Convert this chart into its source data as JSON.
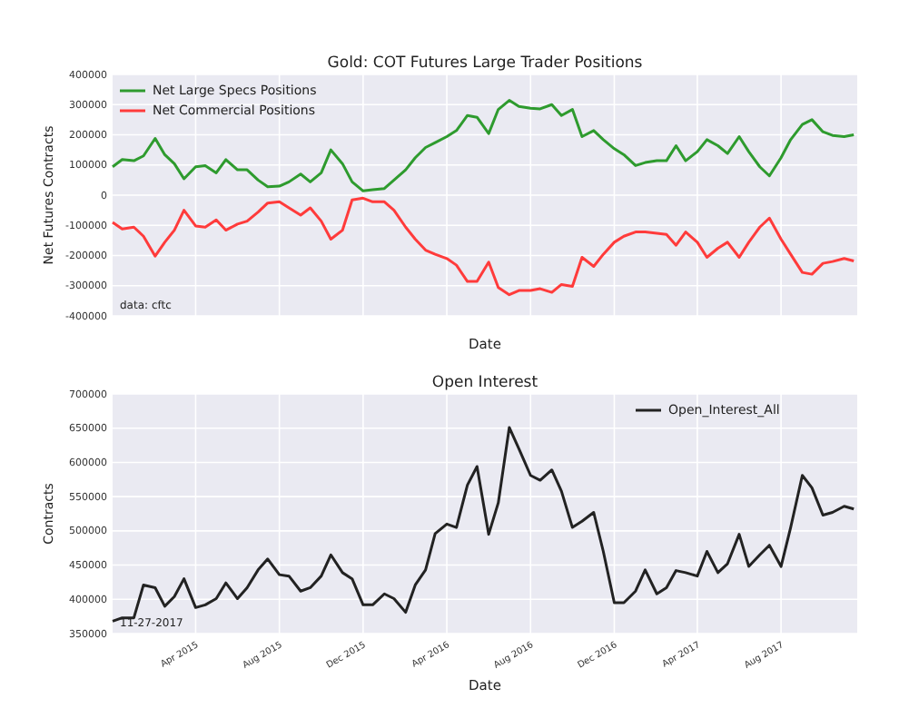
{
  "chart_data": [
    {
      "type": "line",
      "title": "Gold: COT Futures Large Trader Positions",
      "xlabel": "Date",
      "ylabel": "Net Futures Contracts",
      "x": [
        "2014-12-01",
        "2014-12-15",
        "2015-01-01",
        "2015-01-15",
        "2015-02-01",
        "2015-02-15",
        "2015-03-01",
        "2015-03-15",
        "2015-04-01",
        "2015-04-15",
        "2015-05-01",
        "2015-05-15",
        "2015-06-01",
        "2015-06-15",
        "2015-07-01",
        "2015-07-15",
        "2015-08-01",
        "2015-08-15",
        "2015-09-01",
        "2015-09-15",
        "2015-10-01",
        "2015-10-15",
        "2015-11-01",
        "2015-11-15",
        "2015-12-01",
        "2015-12-15",
        "2016-01-01",
        "2016-01-15",
        "2016-02-01",
        "2016-02-15",
        "2016-03-01",
        "2016-03-15",
        "2016-04-01",
        "2016-04-15",
        "2016-05-01",
        "2016-05-15",
        "2016-06-01",
        "2016-06-15",
        "2016-07-01",
        "2016-07-15",
        "2016-08-01",
        "2016-08-15",
        "2016-09-01",
        "2016-09-15",
        "2016-10-01",
        "2016-10-15",
        "2016-11-01",
        "2016-11-15",
        "2016-12-01",
        "2016-12-15",
        "2017-01-01",
        "2017-01-15",
        "2017-02-01",
        "2017-02-15",
        "2017-03-01",
        "2017-03-15",
        "2017-04-01",
        "2017-04-15",
        "2017-05-01",
        "2017-05-15",
        "2017-06-01",
        "2017-06-15",
        "2017-07-01",
        "2017-07-15",
        "2017-08-01",
        "2017-08-15",
        "2017-09-01",
        "2017-09-15",
        "2017-10-01",
        "2017-10-15",
        "2017-11-01",
        "2017-11-15"
      ],
      "series": [
        {
          "name": "Net Large Specs Positions",
          "color": "#2e9b2e",
          "values": [
            94000,
            118000,
            114000,
            130000,
            188000,
            134000,
            104000,
            54000,
            94000,
            98000,
            74000,
            118000,
            84000,
            84000,
            50000,
            28000,
            30000,
            44000,
            70000,
            44000,
            74000,
            150000,
            104000,
            44000,
            14000,
            18000,
            22000,
            50000,
            84000,
            124000,
            158000,
            174000,
            194000,
            214000,
            264000,
            258000,
            204000,
            284000,
            314000,
            294000,
            288000,
            286000,
            300000,
            264000,
            284000,
            194000,
            214000,
            184000,
            154000,
            134000,
            98000,
            108000,
            114000,
            114000,
            164000,
            114000,
            144000,
            184000,
            164000,
            138000,
            194000,
            144000,
            94000,
            64000,
            124000,
            184000,
            234000,
            250000,
            210000,
            198000,
            194000,
            200000
          ]
        },
        {
          "name": "Net Commercial Positions",
          "color": "#ff3b3b",
          "values": [
            -90000,
            -112000,
            -106000,
            -136000,
            -202000,
            -156000,
            -116000,
            -50000,
            -102000,
            -106000,
            -82000,
            -116000,
            -96000,
            -86000,
            -56000,
            -26000,
            -22000,
            -42000,
            -66000,
            -42000,
            -86000,
            -146000,
            -116000,
            -16000,
            -10000,
            -22000,
            -22000,
            -50000,
            -106000,
            -146000,
            -182000,
            -196000,
            -210000,
            -232000,
            -286000,
            -286000,
            -222000,
            -306000,
            -330000,
            -316000,
            -316000,
            -310000,
            -322000,
            -296000,
            -302000,
            -206000,
            -236000,
            -196000,
            -156000,
            -136000,
            -122000,
            -122000,
            -126000,
            -130000,
            -166000,
            -122000,
            -156000,
            -206000,
            -176000,
            -156000,
            -206000,
            -156000,
            -106000,
            -76000,
            -146000,
            -196000,
            -256000,
            -262000,
            -226000,
            -220000,
            -210000,
            -218000
          ]
        }
      ],
      "xlim": [
        "2014-12-01",
        "2017-11-20"
      ],
      "xticks": [
        {
          "value": "2015-04-01",
          "label": null
        },
        {
          "value": "2015-08-01",
          "label": null
        },
        {
          "value": "2015-12-01",
          "label": null
        },
        {
          "value": "2016-04-01",
          "label": null
        },
        {
          "value": "2016-08-01",
          "label": null
        },
        {
          "value": "2016-12-01",
          "label": null
        },
        {
          "value": "2017-04-01",
          "label": null
        },
        {
          "value": "2017-08-01",
          "label": null
        }
      ],
      "ylim": [
        -400000,
        400000
      ],
      "yticks": [
        -400000,
        -300000,
        -200000,
        -100000,
        0,
        100000,
        200000,
        300000,
        400000
      ],
      "tick_labels": "y",
      "grid": true,
      "legend": "top left",
      "annotations": [
        "data: cftc"
      ]
    },
    {
      "type": "line",
      "title": "Open Interest",
      "xlabel": "Date",
      "ylabel": "Contracts",
      "x": [
        "2014-12-01",
        "2014-12-15",
        "2015-01-01",
        "2015-01-15",
        "2015-02-01",
        "2015-02-15",
        "2015-03-01",
        "2015-03-15",
        "2015-04-01",
        "2015-04-15",
        "2015-05-01",
        "2015-05-15",
        "2015-06-01",
        "2015-06-15",
        "2015-07-01",
        "2015-07-15",
        "2015-08-01",
        "2015-08-15",
        "2015-09-01",
        "2015-09-15",
        "2015-10-01",
        "2015-10-15",
        "2015-11-01",
        "2015-11-15",
        "2015-12-01",
        "2015-12-15",
        "2016-01-01",
        "2016-01-15",
        "2016-02-01",
        "2016-02-15",
        "2016-03-01",
        "2016-03-15",
        "2016-04-01",
        "2016-04-15",
        "2016-05-01",
        "2016-05-15",
        "2016-06-01",
        "2016-06-15",
        "2016-07-01",
        "2016-07-15",
        "2016-08-01",
        "2016-08-15",
        "2016-09-01",
        "2016-09-15",
        "2016-10-01",
        "2016-10-15",
        "2016-11-01",
        "2016-11-15",
        "2016-12-01",
        "2016-12-15",
        "2017-01-01",
        "2017-01-15",
        "2017-02-01",
        "2017-02-15",
        "2017-03-01",
        "2017-03-15",
        "2017-04-01",
        "2017-04-15",
        "2017-05-01",
        "2017-05-15",
        "2017-06-01",
        "2017-06-15",
        "2017-07-01",
        "2017-07-15",
        "2017-08-01",
        "2017-08-15",
        "2017-09-01",
        "2017-09-15",
        "2017-10-01",
        "2017-10-15",
        "2017-11-01",
        "2017-11-15"
      ],
      "series": [
        {
          "name": "Open_Interest_All",
          "color": "#222222",
          "values": [
            368000,
            373000,
            373000,
            421000,
            417000,
            390000,
            404000,
            430000,
            388000,
            392000,
            401000,
            424000,
            401000,
            417000,
            443000,
            459000,
            436000,
            434000,
            412000,
            417000,
            434000,
            465000,
            439000,
            430000,
            392000,
            392000,
            408000,
            401000,
            381000,
            421000,
            443000,
            496000,
            510000,
            505000,
            567000,
            594000,
            495000,
            541000,
            651000,
            620000,
            581000,
            574000,
            589000,
            558000,
            505000,
            514000,
            527000,
            470000,
            395000,
            395000,
            412000,
            443000,
            408000,
            417000,
            442000,
            439000,
            434000,
            470000,
            439000,
            452000,
            495000,
            448000,
            465000,
            479000,
            448000,
            505000,
            581000,
            563000,
            523000,
            527000,
            536000,
            532000
          ]
        }
      ],
      "xlim": [
        "2014-12-01",
        "2017-11-20"
      ],
      "xticks": [
        {
          "value": "2015-04-01",
          "label": "Apr 2015"
        },
        {
          "value": "2015-08-01",
          "label": "Aug 2015"
        },
        {
          "value": "2015-12-01",
          "label": "Dec 2015"
        },
        {
          "value": "2016-04-01",
          "label": "Apr 2016"
        },
        {
          "value": "2016-08-01",
          "label": "Aug 2016"
        },
        {
          "value": "2016-12-01",
          "label": "Dec 2016"
        },
        {
          "value": "2017-04-01",
          "label": "Apr 2017"
        },
        {
          "value": "2017-08-01",
          "label": "Aug 2017"
        }
      ],
      "ylim": [
        350000,
        700000
      ],
      "yticks": [
        350000,
        400000,
        450000,
        500000,
        550000,
        600000,
        650000,
        700000
      ],
      "grid": true,
      "legend": "top right",
      "annotations": [
        "11-27-2017"
      ]
    }
  ]
}
